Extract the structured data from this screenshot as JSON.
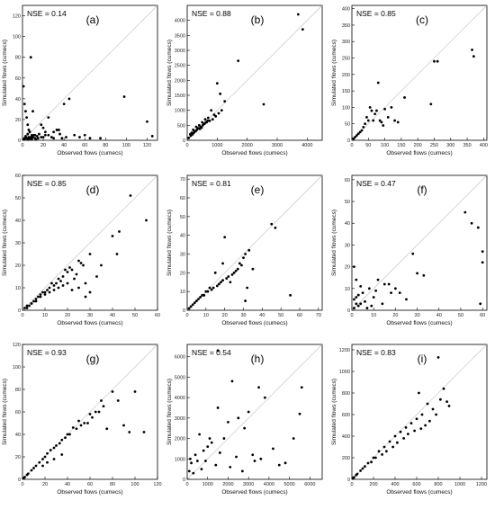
{
  "chart_data": [
    {
      "type": "scatter",
      "panel_label": "(a)",
      "nse": "NSE = 0.14",
      "xlabel": "Observed flows (cumecs)",
      "ylabel": "Simulated flows (cumecs)",
      "xlim": [
        0,
        130
      ],
      "ylim": [
        0,
        130
      ],
      "xticks": [
        0,
        20,
        40,
        60,
        80,
        100,
        120
      ],
      "yticks": [
        0,
        20,
        40,
        60,
        80,
        100,
        120
      ],
      "x": [
        1,
        2,
        3,
        4,
        5,
        6,
        7,
        8,
        9,
        10,
        12,
        14,
        16,
        18,
        20,
        22,
        25,
        28,
        30,
        33,
        36,
        40,
        45,
        50,
        55,
        60,
        65,
        75,
        98,
        120,
        125,
        2,
        3,
        5,
        6,
        8,
        10,
        12,
        15,
        18,
        20,
        22,
        25,
        30,
        35,
        38,
        42,
        5,
        7,
        9,
        11,
        13,
        2,
        4,
        6,
        8,
        1,
        3,
        5,
        7
      ],
      "y": [
        52,
        35,
        28,
        22,
        15,
        10,
        8,
        80,
        5,
        3,
        2,
        4,
        6,
        3,
        12,
        8,
        5,
        3,
        2,
        10,
        6,
        35,
        40,
        5,
        3,
        5,
        2,
        2,
        42,
        18,
        4,
        2,
        4,
        6,
        3,
        2,
        28,
        5,
        2,
        15,
        3,
        5,
        22,
        8,
        10,
        2,
        3,
        1,
        2,
        1,
        5,
        1,
        1,
        2,
        1,
        3,
        1,
        2,
        1,
        2
      ]
    },
    {
      "type": "scatter",
      "panel_label": "(b)",
      "nse": "NSE = 0.88",
      "xlabel": "Observed flows (cumecs)",
      "ylabel": "Simulated flows (cumecs)",
      "xlim": [
        0,
        4500
      ],
      "ylim": [
        0,
        4500
      ],
      "xticks": [
        0,
        1000,
        2000,
        3000,
        4000
      ],
      "yticks": [
        0,
        500,
        1000,
        1500,
        2000,
        2500,
        3000,
        3500,
        4000
      ],
      "x": [
        3700,
        3850,
        1700,
        1000,
        1100,
        1250,
        2550,
        800,
        900,
        600,
        700,
        500,
        400,
        300,
        200,
        100,
        150,
        250,
        350,
        450,
        550,
        650,
        750,
        850,
        950,
        1050,
        1150,
        50,
        120,
        180,
        220,
        280,
        320,
        380,
        420,
        480,
        520,
        580,
        620,
        680
      ],
      "y": [
        4200,
        3700,
        2650,
        1900,
        1550,
        1300,
        1200,
        1000,
        850,
        700,
        750,
        600,
        500,
        450,
        350,
        200,
        250,
        300,
        400,
        450,
        550,
        600,
        650,
        700,
        800,
        900,
        1000,
        80,
        150,
        200,
        250,
        300,
        350,
        400,
        380,
        420,
        500,
        550,
        600,
        650
      ]
    },
    {
      "type": "scatter",
      "panel_label": "(c)",
      "nse": "NSE = 0.85",
      "xlabel": "Observed flows (cumecs)",
      "ylabel": "Simulated flows (cumecs)",
      "xlim": [
        0,
        410
      ],
      "ylim": [
        0,
        410
      ],
      "xticks": [
        0,
        50,
        100,
        150,
        200,
        250,
        300,
        350,
        400
      ],
      "yticks": [
        0,
        50,
        100,
        150,
        200,
        250,
        300,
        350,
        400
      ],
      "x": [
        365,
        370,
        260,
        250,
        240,
        160,
        120,
        110,
        100,
        85,
        80,
        70,
        60,
        50,
        45,
        40,
        35,
        30,
        25,
        20,
        15,
        10,
        5,
        55,
        65,
        90,
        130,
        140,
        75,
        95
      ],
      "y": [
        275,
        255,
        240,
        240,
        110,
        130,
        100,
        70,
        95,
        60,
        175,
        80,
        90,
        60,
        70,
        50,
        40,
        30,
        25,
        20,
        15,
        10,
        5,
        100,
        60,
        55,
        60,
        55,
        90,
        45
      ]
    },
    {
      "type": "scatter",
      "panel_label": "(d)",
      "nse": "NSE = 0.85",
      "xlabel": "Observed flows (cumecs)",
      "ylabel": "Simulated flows (cumecs)",
      "xlim": [
        0,
        60
      ],
      "ylim": [
        0,
        60
      ],
      "xticks": [
        0,
        10,
        20,
        30,
        40,
        50,
        60
      ],
      "yticks": [
        0,
        10,
        20,
        30,
        40,
        50,
        60
      ],
      "x": [
        48,
        55,
        43,
        40,
        42,
        30,
        27,
        25,
        22,
        20,
        18,
        15,
        12,
        10,
        8,
        6,
        5,
        4,
        3,
        2,
        1,
        35,
        33,
        28,
        26,
        24,
        23,
        21,
        19,
        17,
        16,
        14,
        13,
        11,
        9,
        7,
        30,
        28,
        25,
        22,
        20,
        18,
        16,
        14,
        12,
        10,
        8,
        6,
        4,
        2
      ],
      "y": [
        51,
        40,
        35,
        33,
        25,
        25,
        20,
        22,
        18,
        17,
        15,
        12,
        10,
        8,
        7,
        5,
        4,
        3,
        2,
        2,
        1,
        20,
        15,
        12,
        21,
        16,
        14,
        19,
        18,
        13,
        14,
        11,
        12,
        9,
        8,
        6,
        8,
        6,
        10,
        9,
        12,
        11,
        10,
        9,
        8,
        7,
        6,
        4,
        3,
        1
      ]
    },
    {
      "type": "scatter",
      "panel_label": "(e)",
      "nse": "NSE = 0.81",
      "xlabel": "Observed flows (cumecs)",
      "ylabel": "Simulated flows (cumecs)",
      "xlim": [
        0,
        72
      ],
      "ylim": [
        0,
        72
      ],
      "xticks": [
        0,
        10,
        20,
        30,
        40,
        50,
        60,
        70
      ],
      "yticks": [
        0,
        10,
        20,
        30,
        40,
        50,
        60,
        70
      ],
      "x": [
        45,
        47,
        55,
        35,
        33,
        30,
        28,
        25,
        22,
        20,
        18,
        15,
        12,
        10,
        8,
        6,
        5,
        4,
        3,
        2,
        1,
        32,
        31,
        29,
        27,
        26,
        24,
        23,
        21,
        19,
        17,
        16,
        14,
        13,
        11,
        9,
        7,
        19,
        31
      ],
      "y": [
        46,
        44,
        8,
        22,
        32,
        28,
        25,
        20,
        18,
        39,
        15,
        20,
        12,
        10,
        8,
        6,
        5,
        4,
        3,
        2,
        1,
        12,
        30,
        24,
        22,
        21,
        19,
        15,
        17,
        16,
        14,
        13,
        12,
        11,
        10,
        8,
        7,
        25,
        5
      ]
    },
    {
      "type": "scatter",
      "panel_label": "(f)",
      "nse": "NSE = 0.47",
      "xlabel": "Observed flows (cumecs)",
      "ylabel": "Simulated flows (cumecs)",
      "xlim": [
        0,
        62
      ],
      "ylim": [
        0,
        62
      ],
      "xticks": [
        0,
        10,
        20,
        30,
        40,
        50,
        60
      ],
      "yticks": [
        0,
        10,
        20,
        30,
        40,
        50,
        60
      ],
      "x": [
        52,
        55,
        58,
        60,
        60,
        59,
        28,
        33,
        30,
        20,
        18,
        15,
        12,
        10,
        8,
        6,
        5,
        4,
        3,
        2,
        1,
        1,
        2,
        3,
        25,
        22,
        17,
        14,
        11,
        9,
        7,
        4,
        2,
        1
      ],
      "y": [
        45,
        40,
        38,
        27,
        22,
        3,
        26,
        16,
        17,
        10,
        8,
        12,
        14,
        6,
        10,
        4,
        8,
        3,
        2,
        14,
        20,
        5,
        6,
        7,
        5,
        8,
        12,
        3,
        9,
        2,
        1,
        11,
        3,
        1
      ]
    },
    {
      "type": "scatter",
      "panel_label": "(g)",
      "nse": "NSE = 0.93",
      "xlabel": "Observed flows (cumecs)",
      "ylabel": "Simulated flows (cumecs)",
      "xlim": [
        0,
        120
      ],
      "ylim": [
        0,
        120
      ],
      "xticks": [
        0,
        20,
        40,
        60,
        80,
        100,
        120
      ],
      "yticks": [
        0,
        20,
        40,
        60,
        80,
        100,
        120
      ],
      "x": [
        100,
        108,
        85,
        80,
        70,
        65,
        60,
        55,
        50,
        45,
        40,
        35,
        30,
        25,
        20,
        15,
        10,
        5,
        2,
        1,
        75,
        72,
        68,
        62,
        58,
        52,
        48,
        42,
        38,
        33,
        28,
        22,
        18,
        12,
        8,
        4,
        90,
        95,
        35,
        28,
        22,
        18
      ],
      "y": [
        78,
        42,
        70,
        78,
        70,
        60,
        58,
        50,
        52,
        46,
        40,
        35,
        30,
        26,
        20,
        15,
        10,
        5,
        2,
        1,
        45,
        65,
        60,
        55,
        50,
        48,
        45,
        40,
        37,
        32,
        28,
        23,
        18,
        12,
        8,
        4,
        48,
        42,
        22,
        18,
        15,
        12
      ]
    },
    {
      "type": "scatter",
      "panel_label": "(h)",
      "nse": "NSE = 0.54",
      "xlabel": "Observed flows (cumecs)",
      "ylabel": "Simulated flows (cumecs)",
      "xlim": [
        0,
        6600
      ],
      "ylim": [
        0,
        6600
      ],
      "xticks": [
        0,
        1000,
        2000,
        3000,
        4000,
        5000,
        6000
      ],
      "yticks": [
        0,
        1000,
        2000,
        3000,
        4000,
        5000,
        6000
      ],
      "x": [
        1500,
        2200,
        3500,
        5600,
        5500,
        5200,
        3800,
        4200,
        3000,
        2500,
        2000,
        1800,
        1500,
        1200,
        1000,
        800,
        600,
        400,
        200,
        100,
        3300,
        3600,
        2800,
        2400,
        1600,
        1400,
        700,
        500,
        300,
        150,
        4500,
        4800,
        2100,
        2700,
        3200,
        900,
        1100
      ],
      "y": [
        6300,
        4800,
        4500,
        4500,
        3200,
        2000,
        4000,
        1500,
        3300,
        3000,
        2800,
        2000,
        3500,
        1800,
        1600,
        1400,
        2200,
        1200,
        800,
        400,
        900,
        1000,
        2500,
        1100,
        1300,
        700,
        500,
        900,
        300,
        1000,
        700,
        800,
        600,
        400,
        1200,
        900,
        2000
      ]
    },
    {
      "type": "scatter",
      "panel_label": "(i)",
      "nse": "NSE = 0.83",
      "xlabel": "Observed flows (cumecs)",
      "ylabel": "Simulated flows (cumecs)",
      "xlim": [
        0,
        1250
      ],
      "ylim": [
        0,
        1250
      ],
      "xticks": [
        0,
        200,
        400,
        600,
        800,
        1000,
        1200
      ],
      "yticks": [
        0,
        200,
        400,
        600,
        800,
        1000,
        1200
      ],
      "x": [
        800,
        850,
        620,
        900,
        880,
        700,
        750,
        650,
        600,
        550,
        500,
        450,
        400,
        350,
        300,
        250,
        200,
        150,
        100,
        50,
        20,
        820,
        780,
        720,
        680,
        640,
        580,
        520,
        480,
        420,
        380,
        320,
        280,
        220,
        180,
        120,
        80,
        40,
        10
      ],
      "y": [
        1130,
        840,
        800,
        680,
        720,
        700,
        650,
        600,
        560,
        520,
        480,
        440,
        400,
        350,
        300,
        260,
        200,
        150,
        100,
        50,
        20,
        740,
        600,
        540,
        500,
        470,
        450,
        420,
        380,
        340,
        300,
        260,
        230,
        200,
        160,
        120,
        80,
        40,
        10
      ]
    }
  ]
}
